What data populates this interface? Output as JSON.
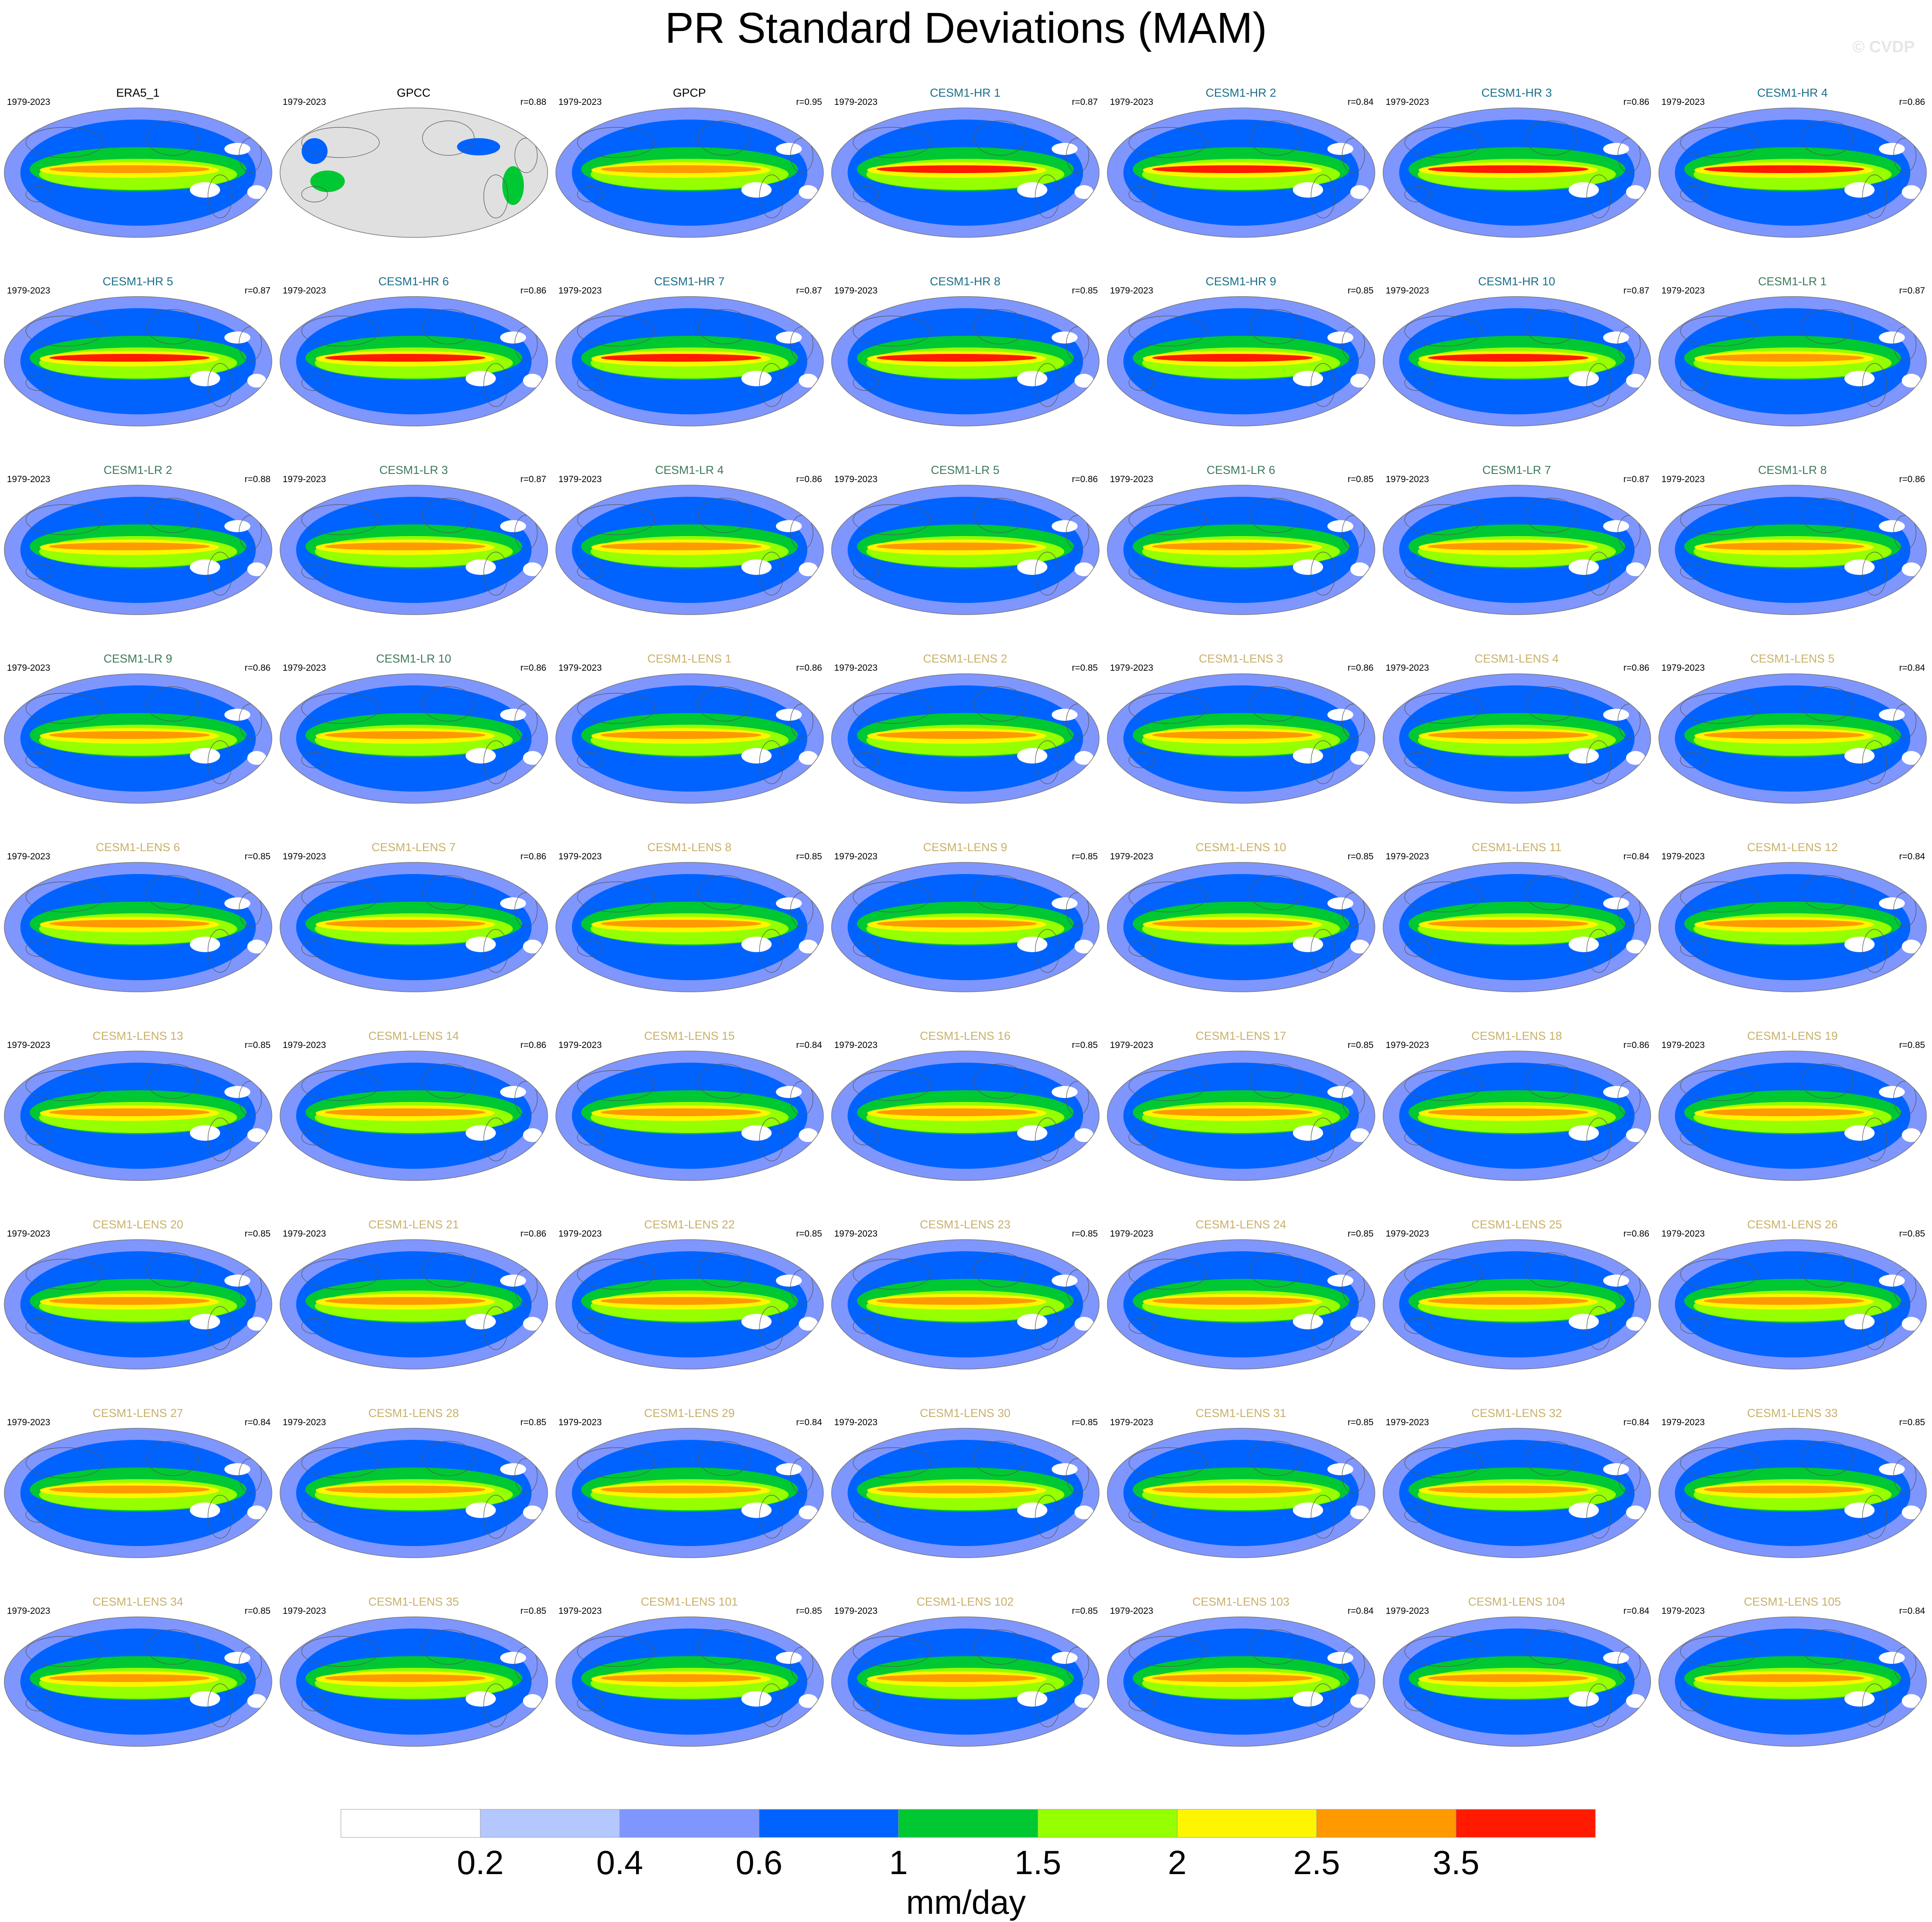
{
  "title": "PR Standard Deviations (MAM)",
  "credit": "© CVDP",
  "period": "1979-2023",
  "colors": {
    "obs_title": "#000000",
    "hr_title": "#1a6f8a",
    "lr_title": "#3d7a5a",
    "lens_title": "#c9b06a",
    "land_gray": "#e0e0e0",
    "coast": "#555555"
  },
  "panels": [
    {
      "label": "ERA5_1",
      "r": "",
      "group": "obs"
    },
    {
      "label": "GPCC",
      "r": "r=0.88",
      "group": "gpcc"
    },
    {
      "label": "GPCP",
      "r": "r=0.95",
      "group": "obs"
    },
    {
      "label": "CESM1-HR 1",
      "r": "r=0.87",
      "group": "hr"
    },
    {
      "label": "CESM1-HR 2",
      "r": "r=0.84",
      "group": "hr"
    },
    {
      "label": "CESM1-HR 3",
      "r": "r=0.86",
      "group": "hr"
    },
    {
      "label": "CESM1-HR 4",
      "r": "r=0.86",
      "group": "hr"
    },
    {
      "label": "CESM1-HR 5",
      "r": "r=0.87",
      "group": "hr"
    },
    {
      "label": "CESM1-HR 6",
      "r": "r=0.86",
      "group": "hr"
    },
    {
      "label": "CESM1-HR 7",
      "r": "r=0.87",
      "group": "hr"
    },
    {
      "label": "CESM1-HR 8",
      "r": "r=0.85",
      "group": "hr"
    },
    {
      "label": "CESM1-HR 9",
      "r": "r=0.85",
      "group": "hr"
    },
    {
      "label": "CESM1-HR 10",
      "r": "r=0.87",
      "group": "hr"
    },
    {
      "label": "CESM1-LR 1",
      "r": "r=0.87",
      "group": "lr"
    },
    {
      "label": "CESM1-LR 2",
      "r": "r=0.88",
      "group": "lr"
    },
    {
      "label": "CESM1-LR 3",
      "r": "r=0.87",
      "group": "lr"
    },
    {
      "label": "CESM1-LR 4",
      "r": "r=0.86",
      "group": "lr"
    },
    {
      "label": "CESM1-LR 5",
      "r": "r=0.86",
      "group": "lr"
    },
    {
      "label": "CESM1-LR 6",
      "r": "r=0.85",
      "group": "lr"
    },
    {
      "label": "CESM1-LR 7",
      "r": "r=0.87",
      "group": "lr"
    },
    {
      "label": "CESM1-LR 8",
      "r": "r=0.86",
      "group": "lr"
    },
    {
      "label": "CESM1-LR 9",
      "r": "r=0.86",
      "group": "lr"
    },
    {
      "label": "CESM1-LR 10",
      "r": "r=0.86",
      "group": "lr"
    },
    {
      "label": "CESM1-LENS 1",
      "r": "r=0.86",
      "group": "lens"
    },
    {
      "label": "CESM1-LENS 2",
      "r": "r=0.85",
      "group": "lens"
    },
    {
      "label": "CESM1-LENS 3",
      "r": "r=0.86",
      "group": "lens"
    },
    {
      "label": "CESM1-LENS 4",
      "r": "r=0.86",
      "group": "lens"
    },
    {
      "label": "CESM1-LENS 5",
      "r": "r=0.84",
      "group": "lens"
    },
    {
      "label": "CESM1-LENS 6",
      "r": "r=0.85",
      "group": "lens"
    },
    {
      "label": "CESM1-LENS 7",
      "r": "r=0.86",
      "group": "lens"
    },
    {
      "label": "CESM1-LENS 8",
      "r": "r=0.85",
      "group": "lens"
    },
    {
      "label": "CESM1-LENS 9",
      "r": "r=0.85",
      "group": "lens"
    },
    {
      "label": "CESM1-LENS 10",
      "r": "r=0.85",
      "group": "lens"
    },
    {
      "label": "CESM1-LENS 11",
      "r": "r=0.84",
      "group": "lens"
    },
    {
      "label": "CESM1-LENS 12",
      "r": "r=0.84",
      "group": "lens"
    },
    {
      "label": "CESM1-LENS 13",
      "r": "r=0.85",
      "group": "lens"
    },
    {
      "label": "CESM1-LENS 14",
      "r": "r=0.86",
      "group": "lens"
    },
    {
      "label": "CESM1-LENS 15",
      "r": "r=0.84",
      "group": "lens"
    },
    {
      "label": "CESM1-LENS 16",
      "r": "r=0.85",
      "group": "lens"
    },
    {
      "label": "CESM1-LENS 17",
      "r": "r=0.85",
      "group": "lens"
    },
    {
      "label": "CESM1-LENS 18",
      "r": "r=0.86",
      "group": "lens"
    },
    {
      "label": "CESM1-LENS 19",
      "r": "r=0.85",
      "group": "lens"
    },
    {
      "label": "CESM1-LENS 20",
      "r": "r=0.85",
      "group": "lens"
    },
    {
      "label": "CESM1-LENS 21",
      "r": "r=0.86",
      "group": "lens"
    },
    {
      "label": "CESM1-LENS 22",
      "r": "r=0.85",
      "group": "lens"
    },
    {
      "label": "CESM1-LENS 23",
      "r": "r=0.85",
      "group": "lens"
    },
    {
      "label": "CESM1-LENS 24",
      "r": "r=0.85",
      "group": "lens"
    },
    {
      "label": "CESM1-LENS 25",
      "r": "r=0.86",
      "group": "lens"
    },
    {
      "label": "CESM1-LENS 26",
      "r": "r=0.85",
      "group": "lens"
    },
    {
      "label": "CESM1-LENS 27",
      "r": "r=0.84",
      "group": "lens"
    },
    {
      "label": "CESM1-LENS 28",
      "r": "r=0.85",
      "group": "lens"
    },
    {
      "label": "CESM1-LENS 29",
      "r": "r=0.84",
      "group": "lens"
    },
    {
      "label": "CESM1-LENS 30",
      "r": "r=0.85",
      "group": "lens"
    },
    {
      "label": "CESM1-LENS 31",
      "r": "r=0.85",
      "group": "lens"
    },
    {
      "label": "CESM1-LENS 32",
      "r": "r=0.84",
      "group": "lens"
    },
    {
      "label": "CESM1-LENS 33",
      "r": "r=0.85",
      "group": "lens"
    },
    {
      "label": "CESM1-LENS 34",
      "r": "r=0.85",
      "group": "lens"
    },
    {
      "label": "CESM1-LENS 35",
      "r": "r=0.85",
      "group": "lens"
    },
    {
      "label": "CESM1-LENS 101",
      "r": "r=0.85",
      "group": "lens"
    },
    {
      "label": "CESM1-LENS 102",
      "r": "r=0.85",
      "group": "lens"
    },
    {
      "label": "CESM1-LENS 103",
      "r": "r=0.84",
      "group": "lens"
    },
    {
      "label": "CESM1-LENS 104",
      "r": "r=0.84",
      "group": "lens"
    },
    {
      "label": "CESM1-LENS 105",
      "r": "r=0.84",
      "group": "lens"
    }
  ],
  "colorbar": {
    "colors": [
      "#ffffff",
      "#b4c8ff",
      "#7f96ff",
      "#0063ff",
      "#00c832",
      "#96ff00",
      "#fff500",
      "#ff9900",
      "#ff1a00"
    ],
    "ticks": [
      "0.2",
      "0.4",
      "0.6",
      "1",
      "1.5",
      "2",
      "2.5",
      "3.5"
    ],
    "units": "mm/day"
  }
}
